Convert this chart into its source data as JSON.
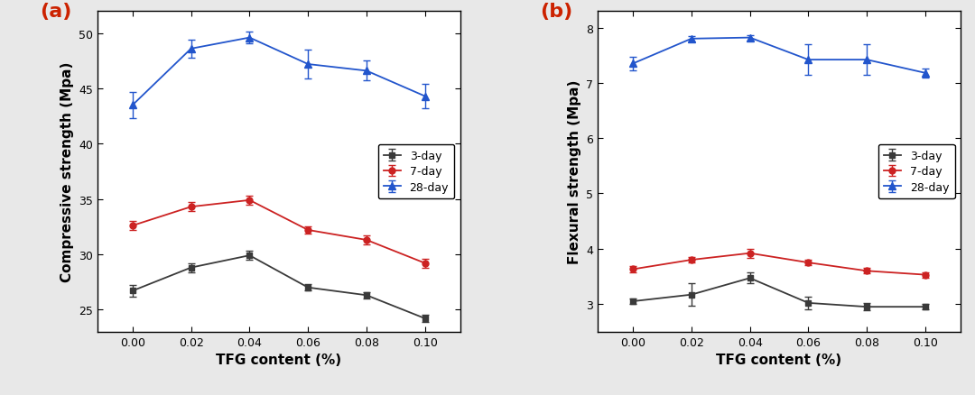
{
  "x": [
    0.0,
    0.02,
    0.04,
    0.06,
    0.08,
    0.1
  ],
  "compressive": {
    "day3": {
      "y": [
        26.7,
        28.8,
        29.9,
        27.0,
        26.3,
        24.2
      ],
      "yerr": [
        0.5,
        0.4,
        0.4,
        0.3,
        0.3,
        0.3
      ]
    },
    "day7": {
      "y": [
        32.6,
        34.3,
        34.9,
        32.2,
        31.3,
        29.2
      ],
      "yerr": [
        0.4,
        0.4,
        0.4,
        0.3,
        0.4,
        0.4
      ]
    },
    "day28": {
      "y": [
        43.5,
        48.6,
        49.6,
        47.2,
        46.6,
        44.3
      ],
      "yerr": [
        1.2,
        0.8,
        0.5,
        1.3,
        0.9,
        1.1
      ]
    }
  },
  "flexural": {
    "day3": {
      "y": [
        3.05,
        3.17,
        3.47,
        3.02,
        2.95,
        2.95
      ],
      "yerr": [
        0.05,
        0.2,
        0.1,
        0.12,
        0.06,
        0.05
      ]
    },
    "day7": {
      "y": [
        3.63,
        3.8,
        3.92,
        3.75,
        3.6,
        3.53
      ],
      "yerr": [
        0.05,
        0.05,
        0.08,
        0.05,
        0.05,
        0.05
      ]
    },
    "day28": {
      "y": [
        7.35,
        7.8,
        7.82,
        7.42,
        7.42,
        7.18
      ],
      "yerr": [
        0.12,
        0.05,
        0.05,
        0.28,
        0.28,
        0.08
      ]
    }
  },
  "colors": {
    "day3": "#3a3a3a",
    "day7": "#cc2222",
    "day28": "#2255cc"
  },
  "panel_label_color": "#cc2200",
  "xlabel": "TFG content (%)",
  "ylabel_a": "Compressive strength (Mpa)",
  "ylabel_b": "Flexural strength (Mpa)",
  "label_3day": "3-day",
  "label_7day": "7-day",
  "label_28day": "28-day",
  "ylim_a": [
    23,
    52
  ],
  "ylim_b": [
    2.5,
    8.3
  ],
  "yticks_a": [
    25,
    30,
    35,
    40,
    45,
    50
  ],
  "yticks_b": [
    3,
    4,
    5,
    6,
    7,
    8
  ],
  "panel_a_label": "(a)",
  "panel_b_label": "(b)",
  "xtick_labels": [
    "0.00",
    "0.02",
    "0.04",
    "0.06",
    "0.08",
    "0.10"
  ]
}
